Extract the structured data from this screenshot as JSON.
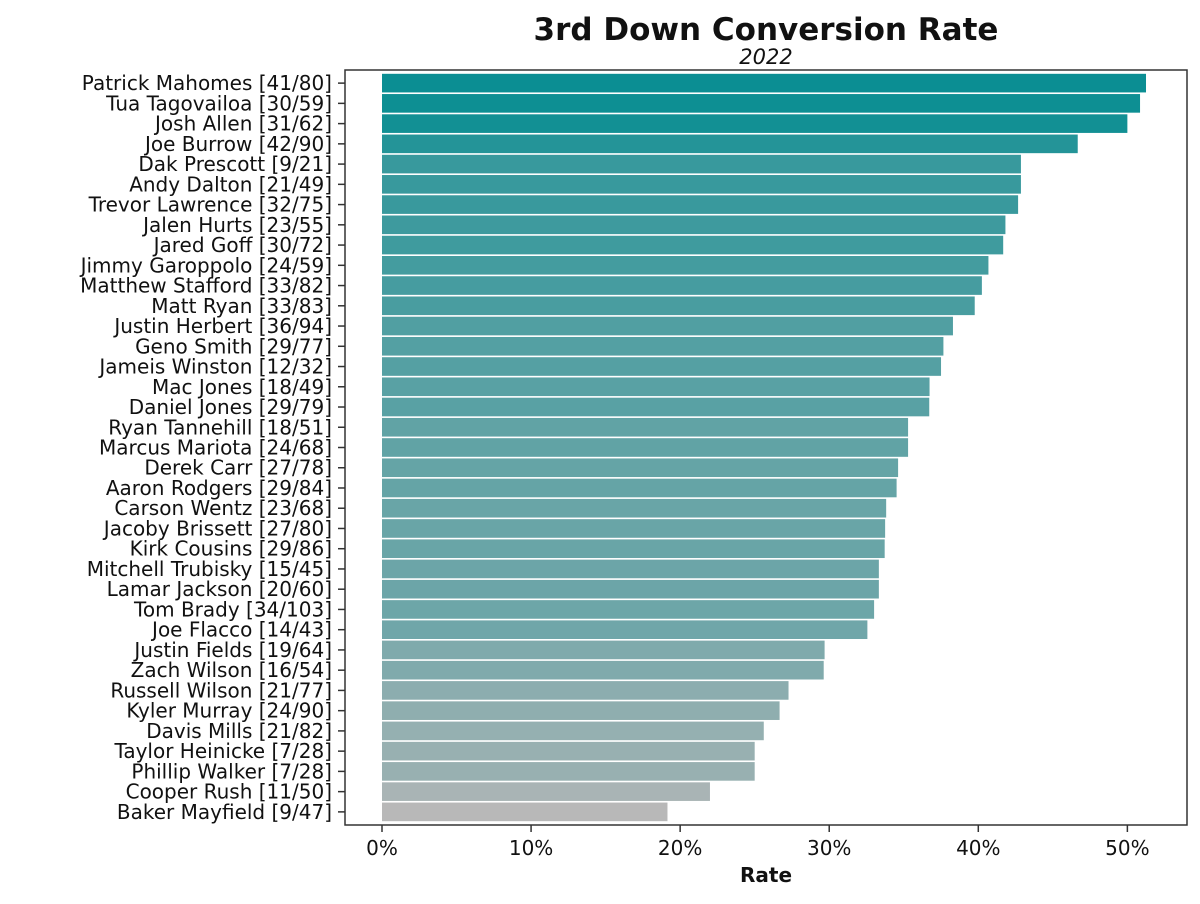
{
  "chart_data": {
    "type": "bar",
    "orientation": "horizontal",
    "title": "3rd Down Conversion Rate",
    "subtitle": "2022",
    "xlabel": "Rate",
    "ylabel": "",
    "xlim": [
      0,
      0.54
    ],
    "x_ticks": [
      0,
      0.1,
      0.2,
      0.3,
      0.4,
      0.5
    ],
    "x_tick_labels": [
      "0%",
      "10%",
      "20%",
      "30%",
      "40%",
      "50%"
    ],
    "grid": false,
    "legend": "none",
    "color_scale": {
      "low": "#b8b8b8",
      "high": "#0b8e93"
    },
    "categories": [
      "Patrick Mahomes [41/80]",
      "Tua Tagovailoa [30/59]",
      "Josh Allen [31/62]",
      "Joe Burrow [42/90]",
      "Dak Prescott [9/21]",
      "Andy Dalton [21/49]",
      "Trevor Lawrence [32/75]",
      "Jalen Hurts [23/55]",
      "Jared Goff [30/72]",
      "Jimmy Garoppolo [24/59]",
      "Matthew Stafford [33/82]",
      "Matt Ryan [33/83]",
      "Justin Herbert [36/94]",
      "Geno Smith [29/77]",
      "Jameis Winston [12/32]",
      "Mac Jones [18/49]",
      "Daniel Jones [29/79]",
      "Ryan Tannehill [18/51]",
      "Marcus Mariota [24/68]",
      "Derek Carr [27/78]",
      "Aaron Rodgers [29/84]",
      "Carson Wentz [23/68]",
      "Jacoby Brissett [27/80]",
      "Kirk Cousins [29/86]",
      "Mitchell Trubisky [15/45]",
      "Lamar Jackson [20/60]",
      "Tom Brady [34/103]",
      "Joe Flacco [14/43]",
      "Justin Fields [19/64]",
      "Zach Wilson [16/54]",
      "Russell Wilson [21/77]",
      "Kyler Murray [24/90]",
      "Davis Mills [21/82]",
      "Taylor Heinicke [7/28]",
      "Phillip Walker [7/28]",
      "Cooper Rush [11/50]",
      "Baker Mayfield [9/47]"
    ],
    "values": [
      0.5125,
      0.5085,
      0.5,
      0.4667,
      0.4286,
      0.4286,
      0.4267,
      0.4182,
      0.4167,
      0.4068,
      0.4024,
      0.3976,
      0.383,
      0.3766,
      0.375,
      0.3673,
      0.3671,
      0.3529,
      0.3529,
      0.3462,
      0.3452,
      0.3382,
      0.3375,
      0.3372,
      0.3333,
      0.3333,
      0.3301,
      0.3256,
      0.2969,
      0.2963,
      0.2727,
      0.2667,
      0.2561,
      0.25,
      0.25,
      0.22,
      0.1915
    ]
  }
}
